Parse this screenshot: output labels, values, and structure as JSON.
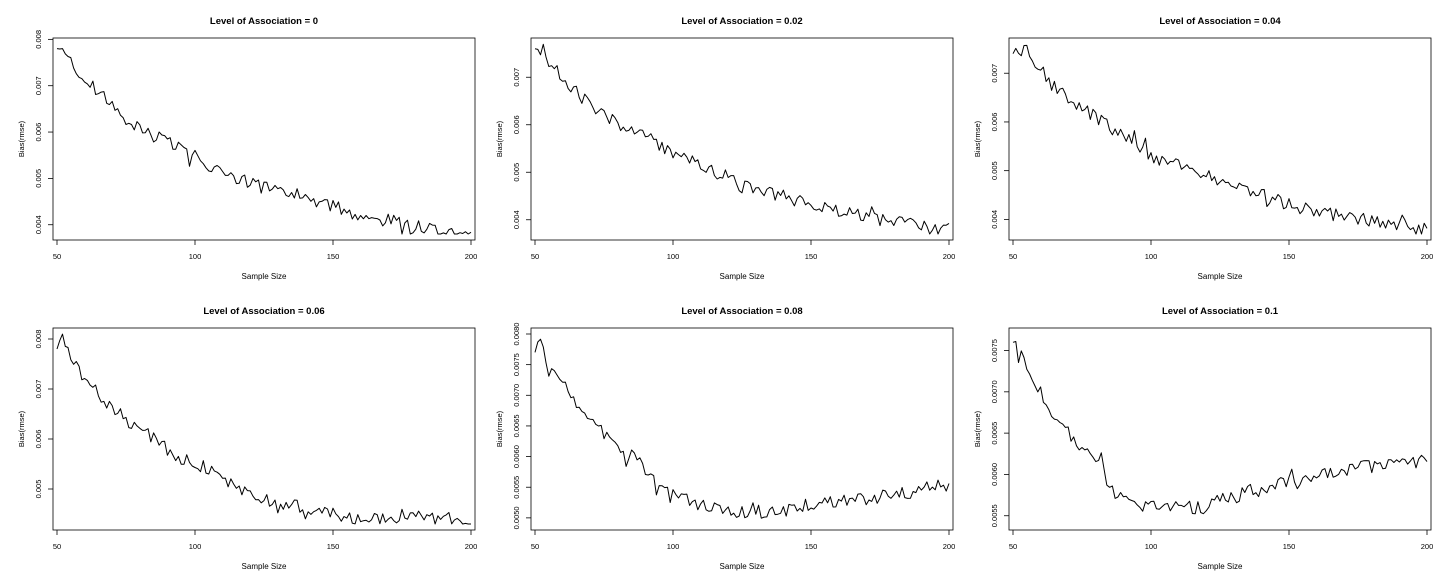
{
  "figure": {
    "xlabel": "Sample Size",
    "ylabel": "Bias(rmse)",
    "line_color": "#000000"
  },
  "chart_data": [
    {
      "type": "line",
      "title": "Level of Association = 0",
      "xlabel": "Sample Size",
      "ylabel": "Bias(rmse)",
      "xlim": [
        50,
        200
      ],
      "ylim": [
        0.0038,
        0.0079
      ],
      "xticks": [
        50,
        100,
        150,
        200
      ],
      "xtick_labels": [
        "50",
        "100",
        "150",
        "200"
      ],
      "yticks": [
        0.004,
        0.005,
        0.006,
        0.007,
        0.008
      ],
      "ytick_labels": [
        "0.004",
        "0.005",
        "0.006",
        "0.007",
        "0.008"
      ],
      "series": [
        {
          "x": [
            50,
            55,
            60,
            65,
            70,
            75,
            80,
            85,
            90,
            95,
            100,
            105,
            110,
            115,
            120,
            125,
            130,
            135,
            140,
            145,
            150,
            155,
            160,
            165,
            170,
            175,
            180,
            185,
            190,
            195,
            200
          ],
          "values": [
            0.0078,
            0.0076,
            0.0071,
            0.0069,
            0.0066,
            0.0063,
            0.0061,
            0.0059,
            0.0058,
            0.0056,
            0.0055,
            0.0053,
            0.0052,
            0.005,
            0.0049,
            0.0048,
            0.0048,
            0.0046,
            0.0046,
            0.0045,
            0.0044,
            0.0043,
            0.0042,
            0.0041,
            0.0041,
            0.004,
            0.0039,
            0.0039,
            0.0038,
            0.0038,
            0.0038
          ]
        }
      ]
    },
    {
      "type": "line",
      "title": "Level of Association = 0.02",
      "xlabel": "Sample Size",
      "ylabel": "Bias(rmse)",
      "xlim": [
        50,
        200
      ],
      "ylim": [
        0.0037,
        0.0077
      ],
      "xticks": [
        50,
        100,
        150,
        200
      ],
      "xtick_labels": [
        "50",
        "100",
        "150",
        "200"
      ],
      "yticks": [
        0.004,
        0.005,
        0.006,
        0.007
      ],
      "ytick_labels": [
        "0.004",
        "0.005",
        "0.006",
        "0.007"
      ],
      "series": [
        {
          "x": [
            50,
            55,
            60,
            65,
            70,
            75,
            80,
            85,
            90,
            95,
            100,
            105,
            110,
            115,
            120,
            125,
            130,
            135,
            140,
            145,
            150,
            155,
            160,
            165,
            170,
            175,
            180,
            185,
            190,
            195,
            200
          ],
          "values": [
            0.0076,
            0.0073,
            0.007,
            0.0067,
            0.0064,
            0.0062,
            0.006,
            0.0059,
            0.0058,
            0.0056,
            0.0054,
            0.0053,
            0.0051,
            0.005,
            0.0049,
            0.0047,
            0.0047,
            0.0046,
            0.0045,
            0.0044,
            0.0043,
            0.0043,
            0.0042,
            0.0041,
            0.0041,
            0.004,
            0.004,
            0.0039,
            0.0039,
            0.0038,
            0.0038
          ]
        }
      ]
    },
    {
      "type": "line",
      "title": "Level of Association = 0.04",
      "xlabel": "Sample Size",
      "ylabel": "Bias(rmse)",
      "xlim": [
        50,
        200
      ],
      "ylim": [
        0.0037,
        0.0076
      ],
      "xticks": [
        50,
        100,
        150,
        200
      ],
      "xtick_labels": [
        "50",
        "100",
        "150",
        "200"
      ],
      "yticks": [
        0.004,
        0.005,
        0.006,
        0.007
      ],
      "ytick_labels": [
        "0.004",
        "0.005",
        "0.006",
        "0.007"
      ],
      "series": [
        {
          "x": [
            50,
            52,
            55,
            60,
            65,
            70,
            75,
            80,
            85,
            90,
            95,
            100,
            105,
            110,
            115,
            120,
            125,
            130,
            135,
            140,
            145,
            150,
            155,
            160,
            165,
            170,
            175,
            180,
            185,
            190,
            195,
            200
          ],
          "values": [
            0.0074,
            0.0075,
            0.0075,
            0.0071,
            0.0067,
            0.0065,
            0.0063,
            0.0061,
            0.0059,
            0.0057,
            0.0055,
            0.0053,
            0.0052,
            0.0051,
            0.005,
            0.0049,
            0.0048,
            0.0047,
            0.0046,
            0.0045,
            0.0044,
            0.0043,
            0.0042,
            0.0042,
            0.0041,
            0.0041,
            0.004,
            0.004,
            0.0039,
            0.0039,
            0.0038,
            0.0038
          ]
        }
      ]
    },
    {
      "type": "line",
      "title": "Level of Association = 0.06",
      "xlabel": "Sample Size",
      "ylabel": "Bias(rmse)",
      "xlim": [
        50,
        200
      ],
      "ylim": [
        0.0043,
        0.0081
      ],
      "xticks": [
        50,
        100,
        150,
        200
      ],
      "xtick_labels": [
        "50",
        "100",
        "150",
        "200"
      ],
      "yticks": [
        0.005,
        0.006,
        0.007,
        0.008
      ],
      "ytick_labels": [
        "0.005",
        "0.006",
        "0.007",
        "0.008"
      ],
      "series": [
        {
          "x": [
            50,
            52,
            55,
            60,
            65,
            70,
            75,
            80,
            85,
            90,
            95,
            100,
            105,
            110,
            115,
            120,
            125,
            130,
            135,
            140,
            145,
            150,
            155,
            160,
            165,
            170,
            175,
            180,
            185,
            190,
            195,
            200
          ],
          "values": [
            0.0078,
            0.008,
            0.0076,
            0.0072,
            0.0069,
            0.0066,
            0.0064,
            0.0062,
            0.006,
            0.0058,
            0.0056,
            0.0055,
            0.0054,
            0.0052,
            0.005,
            0.0049,
            0.0048,
            0.0047,
            0.0047,
            0.0046,
            0.0045,
            0.0045,
            0.0044,
            0.0044,
            0.0044,
            0.0044,
            0.0044,
            0.0044,
            0.0044,
            0.0044,
            0.0044,
            0.0044
          ]
        }
      ]
    },
    {
      "type": "line",
      "title": "Level of Association = 0.08",
      "xlabel": "Sample Size",
      "ylabel": "Bias(rmse)",
      "xlim": [
        50,
        200
      ],
      "ylim": [
        0.0049,
        0.008
      ],
      "xticks": [
        50,
        100,
        150,
        200
      ],
      "xtick_labels": [
        "50",
        "100",
        "150",
        "200"
      ],
      "yticks": [
        0.005,
        0.0055,
        0.006,
        0.0065,
        0.007,
        0.0075,
        0.008
      ],
      "ytick_labels": [
        "0.0050",
        "0.0055",
        "0.0060",
        "0.0065",
        "0.0070",
        "0.0075",
        "0.0080"
      ],
      "series": [
        {
          "x": [
            50,
            52,
            55,
            60,
            65,
            70,
            75,
            80,
            85,
            90,
            95,
            100,
            105,
            110,
            115,
            120,
            125,
            130,
            135,
            140,
            145,
            150,
            155,
            160,
            165,
            170,
            175,
            180,
            185,
            190,
            195,
            200
          ],
          "values": [
            0.0077,
            0.0079,
            0.0074,
            0.0072,
            0.0069,
            0.0066,
            0.0064,
            0.0061,
            0.006,
            0.0058,
            0.0055,
            0.0054,
            0.0053,
            0.0052,
            0.0052,
            0.0051,
            0.0051,
            0.0051,
            0.0051,
            0.0051,
            0.0052,
            0.0052,
            0.0052,
            0.0053,
            0.0053,
            0.0053,
            0.0054,
            0.0054,
            0.0054,
            0.0055,
            0.0055,
            0.0055
          ]
        }
      ]
    },
    {
      "type": "line",
      "title": "Level of Association = 0.1",
      "xlabel": "Sample Size",
      "ylabel": "Bias(rmse)",
      "xlim": [
        50,
        200
      ],
      "ylim": [
        0.0054,
        0.0077
      ],
      "xticks": [
        50,
        100,
        150,
        200
      ],
      "xtick_labels": [
        "50",
        "100",
        "150",
        "200"
      ],
      "yticks": [
        0.0055,
        0.006,
        0.0065,
        0.007,
        0.0075
      ],
      "ytick_labels": [
        "0.0055",
        "0.0060",
        "0.0065",
        "0.0070",
        "0.0075"
      ],
      "series": [
        {
          "x": [
            50,
            52,
            55,
            60,
            65,
            70,
            75,
            80,
            82,
            85,
            90,
            95,
            100,
            105,
            110,
            115,
            120,
            125,
            130,
            135,
            140,
            145,
            150,
            155,
            160,
            165,
            170,
            175,
            180,
            185,
            190,
            195,
            200
          ],
          "values": [
            0.0076,
            0.0075,
            0.0073,
            0.007,
            0.0067,
            0.0065,
            0.0063,
            0.0062,
            0.0062,
            0.0058,
            0.0057,
            0.0056,
            0.0056,
            0.0056,
            0.0057,
            0.0056,
            0.0056,
            0.0057,
            0.0057,
            0.0058,
            0.0058,
            0.0059,
            0.0059,
            0.0059,
            0.006,
            0.006,
            0.006,
            0.0061,
            0.0061,
            0.0061,
            0.0062,
            0.0061,
            0.0062
          ]
        }
      ]
    }
  ]
}
